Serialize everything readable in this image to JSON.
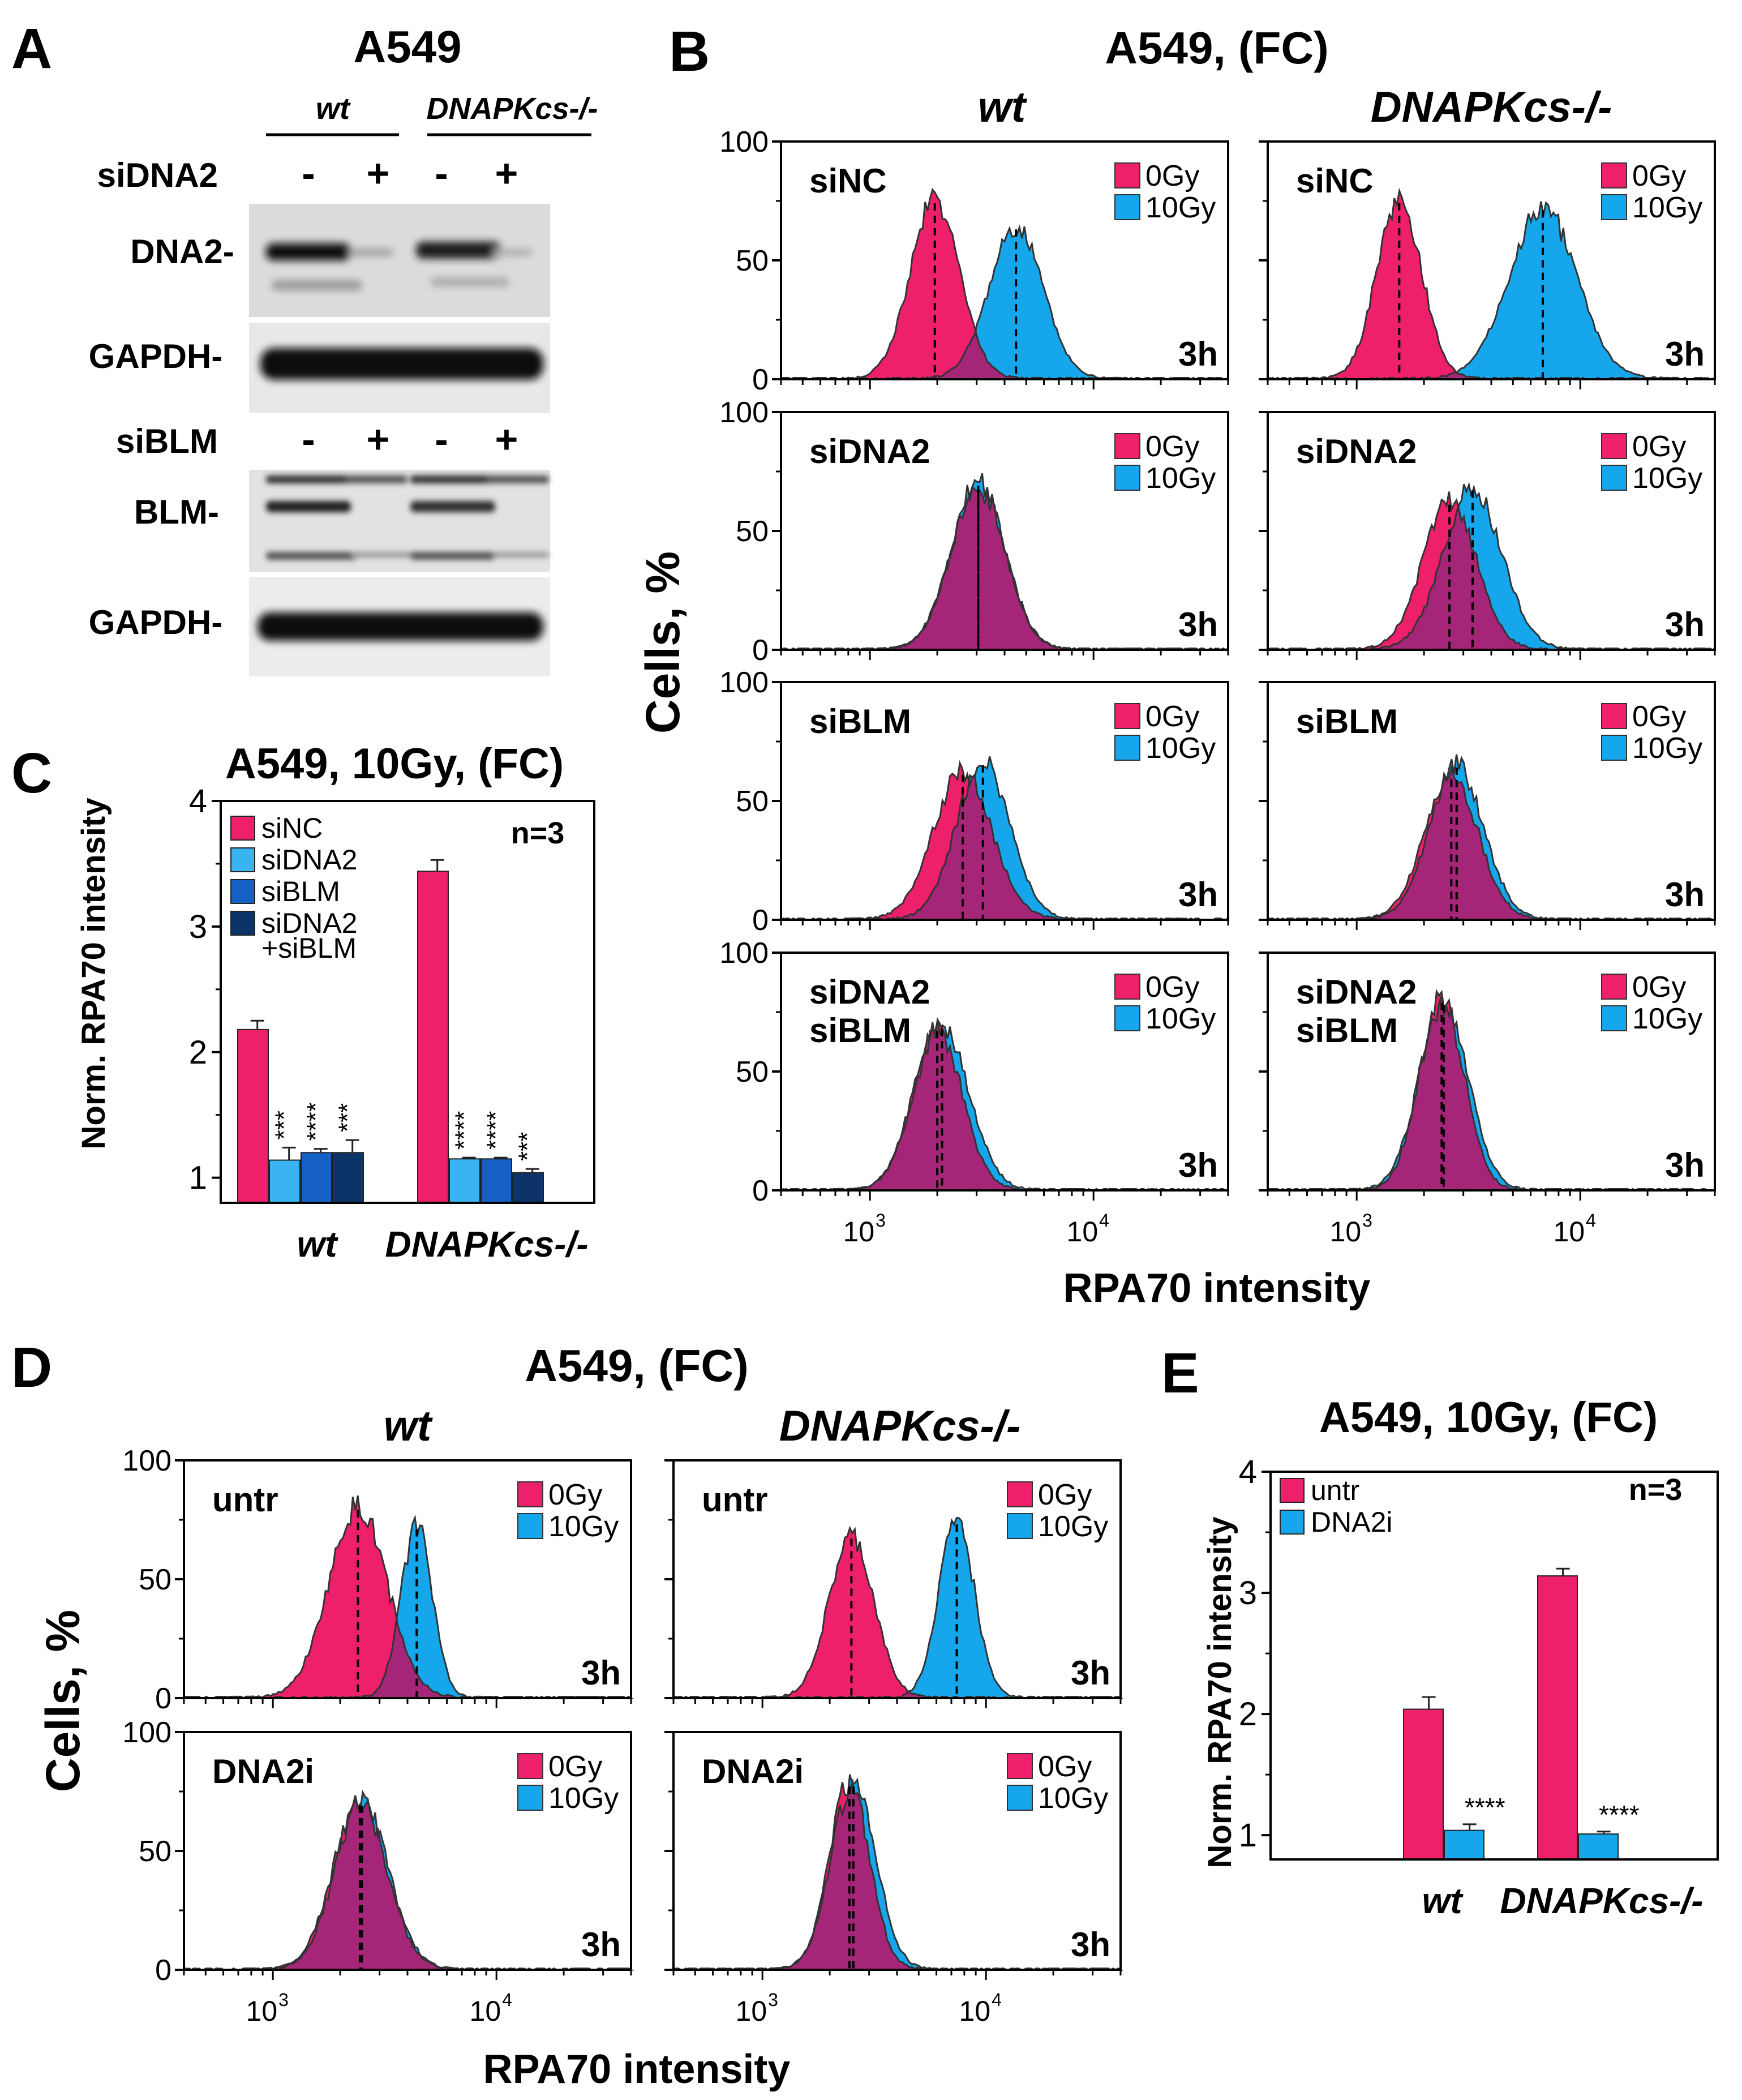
{
  "panel_letters": {
    "A": "A",
    "B": "B",
    "C": "C",
    "D": "D",
    "E": "E"
  },
  "colors": {
    "zero_gy": "#ee1f6b",
    "ten_gy": "#16a6ec",
    "overlap": "#a52678",
    "outline": "#333333",
    "siNC": "#ee1f6b",
    "siDNA2": "#39b4f0",
    "siBLM": "#1560c4",
    "siDNA2_siBLM": "#0d3468"
  },
  "panel_A": {
    "title": "A549",
    "groups": [
      "wt",
      "DNAPKcs-/-"
    ],
    "blots": [
      {
        "treatment_label": "siDNA2",
        "signs": [
          "-",
          "+",
          "-",
          "+"
        ],
        "target_label": "DNA2-",
        "loading_label": "GAPDH-"
      },
      {
        "treatment_label": "siBLM",
        "signs": [
          "-",
          "+",
          "-",
          "+"
        ],
        "target_label": "BLM-",
        "loading_label": "GAPDH-"
      }
    ]
  },
  "panel_B": {
    "title": "A549, (FC)",
    "col_titles": [
      "wt",
      "DNAPKcs-/-"
    ],
    "row_labels": [
      [
        "siNC"
      ],
      [
        "siDNA2"
      ],
      [
        "siBLM"
      ],
      [
        "siDNA2",
        "siBLM"
      ]
    ],
    "ylabel": "Cells, %",
    "xlabel": "RPA70 intensity",
    "time_label": "3h",
    "legend": [
      "0Gy",
      "10Gy"
    ],
    "y_ticks": [
      "0",
      "50",
      "100"
    ],
    "x_ticks": [
      "10",
      "10"
    ],
    "x_tick_exps": [
      "3",
      "4"
    ]
  },
  "panel_D": {
    "title": "A549, (FC)",
    "col_titles": [
      "wt",
      "DNAPKcs-/-"
    ],
    "row_labels": [
      [
        "untr"
      ],
      [
        "DNA2i"
      ]
    ],
    "ylabel": "Cells, %",
    "xlabel": "RPA70 intensity",
    "time_label": "3h",
    "legend": [
      "0Gy",
      "10Gy"
    ],
    "y_ticks": [
      "0",
      "50",
      "100"
    ],
    "x_ticks": [
      "10",
      "10"
    ],
    "x_tick_exps": [
      "3",
      "4"
    ]
  },
  "chart_data": [
    {
      "id": "B",
      "type": "area",
      "title": "A549, (FC)",
      "xlabel": "RPA70 intensity",
      "ylabel": "Cells, %",
      "xscale": "log",
      "xlim": [
        400,
        40000
      ],
      "ylim": [
        0,
        100
      ],
      "panels": [
        {
          "genotype": "wt",
          "treatment": "siNC",
          "series": [
            {
              "name": "0Gy",
              "peak_intensity": 1950,
              "peak_pct": 75,
              "width_decades": 0.11
            },
            {
              "name": "10Gy",
              "peak_intensity": 4500,
              "peak_pct": 64,
              "width_decades": 0.12
            }
          ]
        },
        {
          "genotype": "DNAPKcs-/-",
          "treatment": "siNC",
          "series": [
            {
              "name": "0Gy",
              "peak_intensity": 1550,
              "peak_pct": 75,
              "width_decades": 0.1
            },
            {
              "name": "10Gy",
              "peak_intensity": 6800,
              "peak_pct": 72,
              "width_decades": 0.15
            }
          ]
        },
        {
          "genotype": "wt",
          "treatment": "siDNA2",
          "series": [
            {
              "name": "0Gy",
              "peak_intensity": 3050,
              "peak_pct": 68,
              "width_decades": 0.12
            },
            {
              "name": "10Gy",
              "peak_intensity": 3050,
              "peak_pct": 70,
              "width_decades": 0.12
            }
          ]
        },
        {
          "genotype": "DNAPKcs-/-",
          "treatment": "siDNA2",
          "series": [
            {
              "name": "0Gy",
              "peak_intensity": 2600,
              "peak_pct": 62,
              "width_decades": 0.12
            },
            {
              "name": "10Gy",
              "peak_intensity": 3300,
              "peak_pct": 68,
              "width_decades": 0.13
            }
          ]
        },
        {
          "genotype": "wt",
          "treatment": "siBLM",
          "series": [
            {
              "name": "0Gy",
              "peak_intensity": 2600,
              "peak_pct": 62,
              "width_decades": 0.13
            },
            {
              "name": "10Gy",
              "peak_intensity": 3200,
              "peak_pct": 66,
              "width_decades": 0.12
            }
          ]
        },
        {
          "genotype": "DNAPKcs-/-",
          "treatment": "siBLM",
          "series": [
            {
              "name": "0Gy",
              "peak_intensity": 2650,
              "peak_pct": 60,
              "width_decades": 0.12
            },
            {
              "name": "10Gy",
              "peak_intensity": 2800,
              "peak_pct": 65,
              "width_decades": 0.12
            }
          ]
        },
        {
          "genotype": "wt",
          "treatment": "siDNA2 siBLM",
          "series": [
            {
              "name": "0Gy",
              "peak_intensity": 2000,
              "peak_pct": 68,
              "width_decades": 0.11
            },
            {
              "name": "10Gy",
              "peak_intensity": 2100,
              "peak_pct": 69,
              "width_decades": 0.12
            }
          ]
        },
        {
          "genotype": "DNAPKcs-/-",
          "treatment": "siDNA2 siBLM",
          "series": [
            {
              "name": "0Gy",
              "peak_intensity": 2400,
              "peak_pct": 80,
              "width_decades": 0.1
            },
            {
              "name": "10Gy",
              "peak_intensity": 2450,
              "peak_pct": 79,
              "width_decades": 0.11
            }
          ]
        }
      ]
    },
    {
      "id": "C",
      "type": "bar",
      "title": "A549, 10Gy, (FC)",
      "ylabel": "Norm. RPA70 intensity",
      "categories": [
        "wt",
        "DNAPKcs-/-"
      ],
      "ylim": [
        0.8,
        4
      ],
      "yticks": [
        "1",
        "2",
        "3",
        "4"
      ],
      "annotation": "n=3",
      "series": [
        {
          "name": "siNC",
          "values": [
            2.18,
            3.44
          ],
          "errors": [
            0.07,
            0.09
          ],
          "sig": [
            "",
            ""
          ]
        },
        {
          "name": "siDNA2",
          "values": [
            1.14,
            1.15
          ],
          "errors": [
            0.1,
            0.01
          ],
          "sig": [
            "***",
            "****"
          ]
        },
        {
          "name": "siBLM",
          "values": [
            1.2,
            1.15
          ],
          "errors": [
            0.03,
            0.01
          ],
          "sig": [
            "****",
            "****"
          ]
        },
        {
          "name": "siDNA2 +siBLM",
          "legend_lines": [
            "siDNA2",
            "+siBLM"
          ],
          "values": [
            1.2,
            1.04
          ],
          "errors": [
            0.1,
            0.03
          ],
          "sig": [
            "***",
            "***"
          ]
        }
      ]
    },
    {
      "id": "D",
      "type": "area",
      "title": "A549, (FC)",
      "xlabel": "RPA70 intensity",
      "ylabel": "Cells, %",
      "xscale": "log",
      "xlim": [
        400,
        40000
      ],
      "ylim": [
        0,
        100
      ],
      "panels": [
        {
          "genotype": "wt",
          "treatment": "untr",
          "series": [
            {
              "name": "0Gy",
              "peak_intensity": 2400,
              "peak_pct": 80,
              "width_decades": 0.13
            },
            {
              "name": "10Gy",
              "peak_intensity": 4400,
              "peak_pct": 72,
              "width_decades": 0.07
            }
          ]
        },
        {
          "genotype": "DNAPKcs-/-",
          "treatment": "untr",
          "series": [
            {
              "name": "0Gy",
              "peak_intensity": 2500,
              "peak_pct": 68,
              "width_decades": 0.1
            },
            {
              "name": "10Gy",
              "peak_intensity": 7400,
              "peak_pct": 74,
              "width_decades": 0.08
            }
          ]
        },
        {
          "genotype": "wt",
          "treatment": "DNA2i",
          "series": [
            {
              "name": "0Gy",
              "peak_intensity": 2450,
              "peak_pct": 70,
              "width_decades": 0.12
            },
            {
              "name": "10Gy",
              "peak_intensity": 2500,
              "peak_pct": 70,
              "width_decades": 0.12
            }
          ]
        },
        {
          "genotype": "DNAPKcs-/-",
          "treatment": "DNA2i",
          "series": [
            {
              "name": "0Gy",
              "peak_intensity": 2450,
              "peak_pct": 78,
              "width_decades": 0.09
            },
            {
              "name": "10Gy",
              "peak_intensity": 2550,
              "peak_pct": 78,
              "width_decades": 0.1
            }
          ]
        }
      ]
    },
    {
      "id": "E",
      "type": "bar",
      "title": "A549, 10Gy, (FC)",
      "ylabel": "Norm. RPA70 intensity",
      "categories": [
        "wt",
        "DNAPKcs-/-"
      ],
      "ylim": [
        0.8,
        4
      ],
      "yticks": [
        "1",
        "2",
        "3",
        "4"
      ],
      "annotation": "n=3",
      "series": [
        {
          "name": "untr",
          "values": [
            2.04,
            3.14
          ],
          "errors": [
            0.1,
            0.06
          ],
          "sig": [
            "",
            ""
          ]
        },
        {
          "name": "DNA2i",
          "values": [
            1.04,
            1.01
          ],
          "errors": [
            0.05,
            0.02
          ],
          "sig": [
            "****",
            "****"
          ]
        }
      ]
    }
  ]
}
